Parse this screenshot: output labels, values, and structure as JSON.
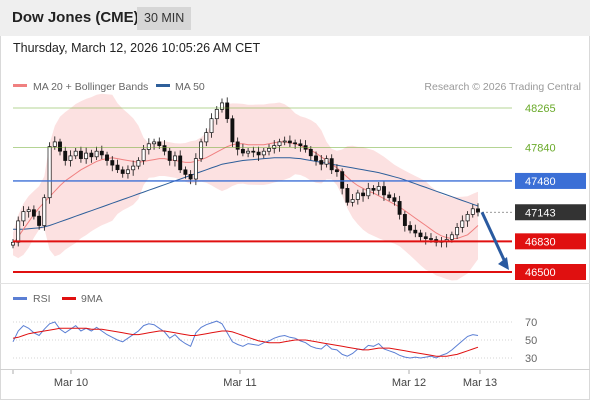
{
  "header": {
    "title": "Dow Jones (CME)",
    "timeframe": "30 MIN"
  },
  "timestamp": "Thursday, March 12, 2026 10:05:26 AM CET",
  "legend": {
    "items": [
      {
        "label": "MA 20 + Bollinger Bands",
        "color": "#f08080"
      },
      {
        "label": "MA 50",
        "color": "#2e5f9a"
      }
    ],
    "credit": "Research © 2026 Trading Central"
  },
  "colors": {
    "resistance": "#6aaa2a",
    "pivot": "#3b6fd6",
    "support": "#e01010",
    "price_tag": "#333333",
    "arrow": "#2a5aa0"
  },
  "chart_data": [
    {
      "type": "line",
      "title": "",
      "x_labels": [
        "Mar 10",
        "Mar 11",
        "Mar 12",
        "Mar 13"
      ],
      "ylim": [
        46450,
        48320
      ],
      "levels": [
        {
          "value": 48265,
          "label": "48265",
          "kind": "resistance"
        },
        {
          "value": 47840,
          "label": "47840",
          "kind": "resistance"
        },
        {
          "value": 47480,
          "label": "47480",
          "kind": "pivot"
        },
        {
          "value": 47143,
          "label": "47143",
          "kind": "last"
        },
        {
          "value": 46830,
          "label": "46830",
          "kind": "support"
        },
        {
          "value": 46500,
          "label": "46500",
          "kind": "support"
        }
      ],
      "series": [
        {
          "name": "Price",
          "values": [
            46820,
            47050,
            47150,
            47170,
            47100,
            47000,
            47300,
            47850,
            47900,
            47800,
            47700,
            47750,
            47800,
            47720,
            47780,
            47740,
            47800,
            47760,
            47700,
            47650,
            47600,
            47560,
            47600,
            47640,
            47700,
            47820,
            47880,
            47900,
            47860,
            47800,
            47700,
            47750,
            47600,
            47550,
            47500,
            47720,
            47900,
            48000,
            48150,
            48250,
            48320,
            48150,
            47900,
            47820,
            47780,
            47800,
            47790,
            47760,
            47800,
            47830,
            47860,
            47900,
            47910,
            47890,
            47880,
            47860,
            47820,
            47750,
            47700,
            47660,
            47720,
            47600,
            47580,
            47400,
            47250,
            47280,
            47350,
            47320,
            47400,
            47380,
            47420,
            47330,
            47300,
            47260,
            47120,
            47000,
            46950,
            46920,
            46880,
            46860,
            46850,
            46820,
            46830,
            46850,
            46900,
            46980,
            47050,
            47120,
            47180,
            47143
          ]
        },
        {
          "name": "MA 20",
          "values": [
            46800,
            46880,
            46960,
            47040,
            47120,
            47190,
            47250,
            47310,
            47370,
            47430,
            47480,
            47520,
            47560,
            47600,
            47630,
            47660,
            47690,
            47710,
            47720,
            47730,
            47720,
            47710,
            47700,
            47690,
            47680,
            47690,
            47700,
            47710,
            47720,
            47720,
            47710,
            47700,
            47690,
            47680,
            47680,
            47690,
            47710,
            47730,
            47760,
            47790,
            47820,
            47850,
            47870,
            47880,
            47880,
            47870,
            47870,
            47870,
            47870,
            47880,
            47890,
            47900,
            47900,
            47890,
            47880,
            47860,
            47840,
            47810,
            47780,
            47740,
            47700,
            47660,
            47620,
            47570,
            47520,
            47470,
            47430,
            47400,
            47370,
            47350,
            47320,
            47290,
            47260,
            47230,
            47200,
            47160,
            47120,
            47080,
            47040,
            47000,
            46960,
            46920,
            46890,
            46870,
            46860,
            46860,
            46880,
            46900,
            46950,
            47000
          ]
        },
        {
          "name": "MA 50",
          "values": [
            46960,
            46960,
            46960,
            46965,
            46970,
            46975,
            46985,
            47000,
            47020,
            47040,
            47060,
            47080,
            47100,
            47120,
            47140,
            47160,
            47180,
            47200,
            47220,
            47240,
            47260,
            47280,
            47300,
            47320,
            47340,
            47360,
            47380,
            47400,
            47420,
            47440,
            47460,
            47480,
            47500,
            47520,
            47540,
            47560,
            47580,
            47600,
            47620,
            47640,
            47660,
            47670,
            47680,
            47690,
            47700,
            47705,
            47710,
            47715,
            47720,
            47725,
            47730,
            47730,
            47730,
            47730,
            47725,
            47720,
            47710,
            47700,
            47690,
            47680,
            47670,
            47660,
            47650,
            47640,
            47630,
            47620,
            47610,
            47600,
            47590,
            47580,
            47570,
            47555,
            47540,
            47525,
            47510,
            47490,
            47470,
            47450,
            47430,
            47410,
            47390,
            47370,
            47350,
            47330,
            47310,
            47290,
            47270,
            47250,
            47230,
            47210
          ]
        }
      ],
      "projection": {
        "from": 47143,
        "to": 46500
      }
    },
    {
      "type": "line",
      "title": "",
      "legend": [
        {
          "label": "RSI",
          "color": "#5b7fd4"
        },
        {
          "label": "9MA",
          "color": "#e01010"
        }
      ],
      "ylim": [
        25,
        80
      ],
      "ticks": [
        70,
        50,
        30
      ],
      "series": [
        {
          "name": "RSI",
          "values": [
            48,
            60,
            66,
            63,
            58,
            55,
            62,
            68,
            70,
            62,
            58,
            62,
            66,
            60,
            63,
            60,
            64,
            60,
            56,
            53,
            50,
            48,
            52,
            56,
            60,
            66,
            68,
            67,
            63,
            59,
            52,
            56,
            50,
            46,
            43,
            58,
            64,
            67,
            69,
            71,
            68,
            58,
            48,
            45,
            43,
            46,
            45,
            44,
            47,
            49,
            52,
            54,
            55,
            53,
            52,
            49,
            47,
            43,
            41,
            40,
            45,
            40,
            39,
            34,
            32,
            35,
            40,
            39,
            44,
            43,
            46,
            40,
            38,
            36,
            33,
            31,
            30,
            31,
            30,
            31,
            32,
            30,
            33,
            35,
            39,
            44,
            49,
            54,
            56,
            55
          ]
        },
        {
          "name": "9MA",
          "values": [
            52,
            53,
            55,
            57,
            58,
            59,
            60,
            61,
            62,
            63,
            63,
            63,
            63,
            63,
            63,
            62,
            62,
            62,
            61,
            60,
            59,
            58,
            57,
            56,
            56,
            57,
            58,
            59,
            60,
            60,
            59,
            58,
            57,
            56,
            55,
            55,
            56,
            57,
            58,
            59,
            60,
            60,
            59,
            57,
            55,
            53,
            51,
            49,
            48,
            47,
            47,
            47,
            48,
            49,
            50,
            50,
            50,
            49,
            48,
            47,
            46,
            45,
            44,
            43,
            42,
            41,
            40,
            39,
            39,
            40,
            41,
            41,
            41,
            40,
            39,
            38,
            37,
            36,
            35,
            34,
            33,
            32,
            32,
            32,
            33,
            34,
            36,
            38,
            40,
            42
          ]
        }
      ]
    }
  ]
}
